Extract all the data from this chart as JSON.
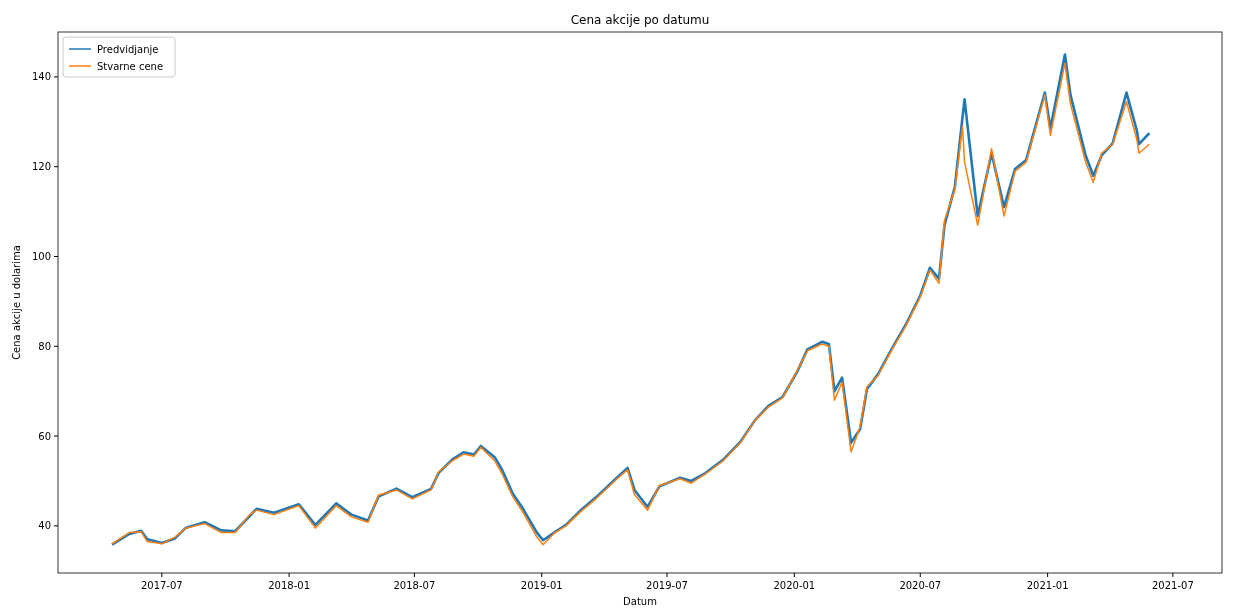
{
  "chart_data": {
    "type": "line",
    "title": "Cena akcije po datumu",
    "xlabel": "Datum",
    "ylabel": "Cena akcije u dolarima",
    "x": [
      "2017-04-20",
      "2017-05-15",
      "2017-06-01",
      "2017-06-10",
      "2017-07-01",
      "2017-07-20",
      "2017-08-05",
      "2017-09-01",
      "2017-09-25",
      "2017-10-15",
      "2017-11-05",
      "2017-11-15",
      "2017-12-10",
      "2018-01-15",
      "2018-02-08",
      "2018-03-10",
      "2018-04-01",
      "2018-04-25",
      "2018-05-10",
      "2018-06-05",
      "2018-06-28",
      "2018-07-25",
      "2018-08-05",
      "2018-08-25",
      "2018-09-10",
      "2018-09-25",
      "2018-10-05",
      "2018-10-25",
      "2018-11-05",
      "2018-11-20",
      "2018-12-05",
      "2018-12-25",
      "2019-01-03",
      "2019-01-20",
      "2019-02-05",
      "2019-02-25",
      "2019-03-20",
      "2019-04-20",
      "2019-05-05",
      "2019-05-15",
      "2019-06-03",
      "2019-06-20",
      "2019-07-20",
      "2019-08-05",
      "2019-08-25",
      "2019-09-20",
      "2019-10-15",
      "2019-11-05",
      "2019-11-25",
      "2019-12-15",
      "2020-01-05",
      "2020-01-20",
      "2020-02-10",
      "2020-02-20",
      "2020-02-28",
      "2020-03-10",
      "2020-03-23",
      "2020-04-05",
      "2020-04-15",
      "2020-05-01",
      "2020-05-20",
      "2020-06-10",
      "2020-07-01",
      "2020-07-15",
      "2020-07-28",
      "2020-08-05",
      "2020-08-20",
      "2020-08-31",
      "2020-09-03",
      "2020-09-22",
      "2020-10-12",
      "2020-10-30",
      "2020-11-15",
      "2020-12-01",
      "2020-12-28",
      "2021-01-05",
      "2021-01-26",
      "2021-02-03",
      "2021-02-25",
      "2021-03-08",
      "2021-03-20",
      "2021-04-05",
      "2021-04-25",
      "2021-05-10",
      "2021-05-13",
      "2021-05-28"
    ],
    "series": [
      {
        "name": "Predvidjanje",
        "color": "#1f77b4",
        "values": [
          35.8,
          38.2,
          38.9,
          37,
          36.2,
          37.2,
          39.6,
          40.8,
          39,
          38.8,
          42.2,
          43.8,
          42.9,
          44.8,
          40.2,
          45,
          42.5,
          41.2,
          46.5,
          48.3,
          46.4,
          48.2,
          51.8,
          54.8,
          56.4,
          55.9,
          57.8,
          55.3,
          52.4,
          47.2,
          43.8,
          38.5,
          36.8,
          38.6,
          40.2,
          43.3,
          46.3,
          50.8,
          52.9,
          48,
          44.2,
          48.8,
          50.7,
          50,
          51.7,
          54.7,
          58.7,
          63.5,
          66.8,
          68.7,
          74.3,
          79.3,
          81,
          80.5,
          70,
          73,
          58.5,
          61.5,
          70.5,
          73.8,
          79.2,
          84.8,
          91.3,
          97.5,
          95,
          107,
          115.5,
          131,
          135,
          109,
          123,
          111,
          119.5,
          121.5,
          136.5,
          128.5,
          145,
          136,
          122.5,
          118,
          122.5,
          125.2,
          136.5,
          128,
          125,
          127.5
        ]
      },
      {
        "name": "Stvarne cene",
        "color": "#ff7f0e",
        "values": [
          36,
          38.5,
          38.7,
          36.5,
          36,
          37.5,
          39.5,
          40.5,
          38.5,
          38.5,
          42.5,
          43.5,
          42.5,
          44.5,
          39.5,
          44.5,
          42,
          40.8,
          46.8,
          48,
          46,
          48,
          52,
          54.5,
          56,
          55.5,
          57.5,
          54.5,
          51.5,
          46.5,
          43,
          37.5,
          35.8,
          38.5,
          40,
          43,
          46,
          50.5,
          52.5,
          47,
          43.5,
          49,
          50.5,
          49.5,
          51.5,
          54.5,
          58.5,
          63.5,
          66.5,
          68.5,
          74.5,
          79,
          80.5,
          80,
          68,
          72,
          56.5,
          62,
          71,
          73.5,
          79,
          84.5,
          91,
          97,
          94,
          108,
          115,
          129,
          121,
          107,
          124,
          109,
          119,
          121,
          136,
          127,
          143,
          134,
          121,
          116.5,
          123,
          125,
          134.5,
          126,
          123,
          125
        ]
      }
    ],
    "xlim": [
      "2017-02-01",
      "2021-09-10"
    ],
    "xticks": [
      "2017-07",
      "2018-01",
      "2018-07",
      "2019-01",
      "2019-07",
      "2020-01",
      "2020-07",
      "2021-01",
      "2021-07"
    ],
    "ylim": [
      29.5,
      150
    ],
    "yticks": [
      40,
      60,
      80,
      100,
      120,
      140
    ],
    "legend": "top left"
  }
}
